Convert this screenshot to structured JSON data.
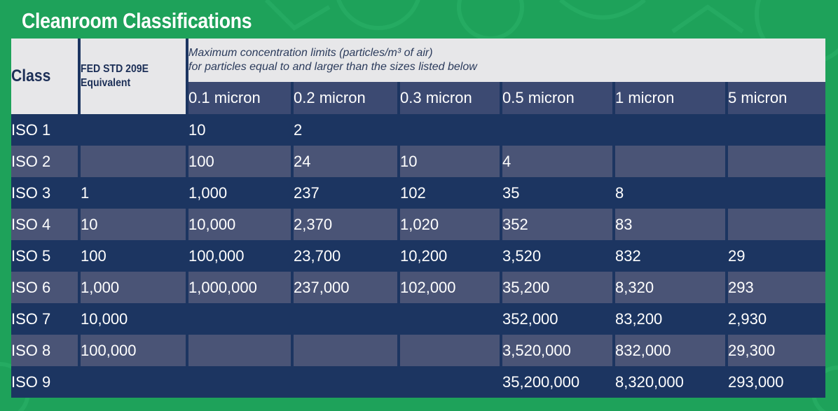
{
  "title": "Cleanroom Classifications",
  "colors": {
    "background": "#1ea25a",
    "header_bg": "#e7e7e9",
    "subheader_bg": "#3c4a72",
    "row_dark": "#1c3561",
    "row_light": "#4a5476",
    "text_light": "#ffffff",
    "text_dark": "#1c2f57"
  },
  "table": {
    "headers": {
      "class": "Class",
      "fed_line1": "FED STD 209E",
      "fed_line2": "Equivalent",
      "max_line1": "Maximum concentration limits (particles/m³ of air)",
      "max_line2": "for particles equal to and larger than the sizes listed below",
      "sizes": [
        "0.1 micron",
        "0.2 micron",
        "0.3 micron",
        "0.5 micron",
        "1 micron",
        "5 micron"
      ]
    },
    "rows": [
      {
        "class": "ISO 1",
        "fed": "",
        "values": [
          "10",
          "2",
          "",
          "",
          "",
          ""
        ]
      },
      {
        "class": "ISO 2",
        "fed": "",
        "values": [
          "100",
          "24",
          "10",
          "4",
          "",
          ""
        ]
      },
      {
        "class": "ISO 3",
        "fed": "1",
        "values": [
          "1,000",
          "237",
          "102",
          "35",
          "8",
          ""
        ]
      },
      {
        "class": "ISO 4",
        "fed": "10",
        "values": [
          "10,000",
          "2,370",
          "1,020",
          "352",
          "83",
          ""
        ]
      },
      {
        "class": "ISO 5",
        "fed": "100",
        "values": [
          "100,000",
          "23,700",
          "10,200",
          "3,520",
          "832",
          "29"
        ]
      },
      {
        "class": "ISO 6",
        "fed": "1,000",
        "values": [
          "1,000,000",
          "237,000",
          "102,000",
          "35,200",
          "8,320",
          "293"
        ]
      },
      {
        "class": "ISO 7",
        "fed": "10,000",
        "values": [
          "",
          "",
          "",
          "352,000",
          "83,200",
          "2,930"
        ]
      },
      {
        "class": "ISO 8",
        "fed": "100,000",
        "values": [
          "",
          "",
          "",
          "3,520,000",
          "832,000",
          "29,300"
        ]
      },
      {
        "class": "ISO 9",
        "fed": "",
        "values": [
          "",
          "",
          "",
          "35,200,000",
          "8,320,000",
          "293,000"
        ]
      }
    ]
  }
}
